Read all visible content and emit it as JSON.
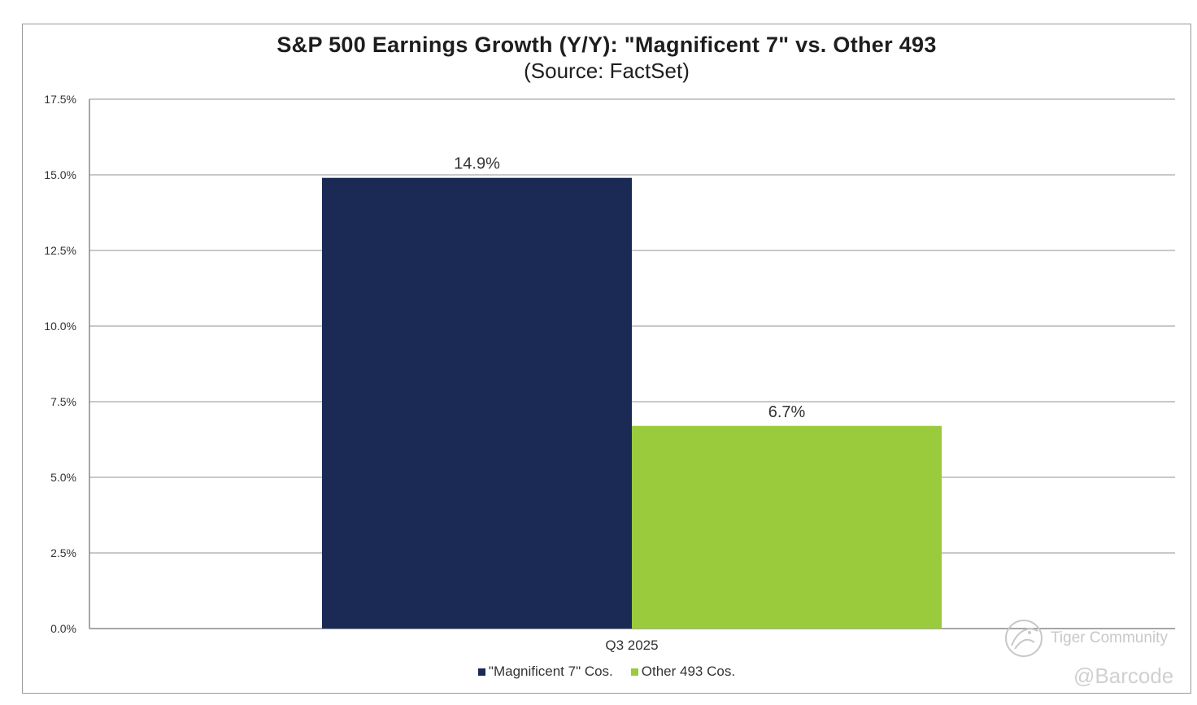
{
  "chart_data": {
    "type": "bar",
    "title": "S&P 500 Earnings Growth (Y/Y): \"Magnificent 7\" vs. Other 493",
    "subtitle": "(Source: FactSet)",
    "categories": [
      "Q3 2025"
    ],
    "series": [
      {
        "name": "\"Magnificent 7\" Cos.",
        "values": [
          14.9
        ],
        "label": "14.9%",
        "color": "#1b2a55"
      },
      {
        "name": "Other 493 Cos.",
        "values": [
          6.7
        ],
        "label": "6.7%",
        "color": "#9acb3c"
      }
    ],
    "y_ticks": [
      "0.0%",
      "2.5%",
      "5.0%",
      "7.5%",
      "10.0%",
      "12.5%",
      "15.0%",
      "17.5%"
    ],
    "ylim": [
      0,
      17.5
    ],
    "grid": true,
    "legend_position": "bottom-center"
  },
  "watermark": {
    "brand": "Tiger Community",
    "handle": "@Barcode",
    "logo_icon": "tiger-community-logo-icon"
  }
}
